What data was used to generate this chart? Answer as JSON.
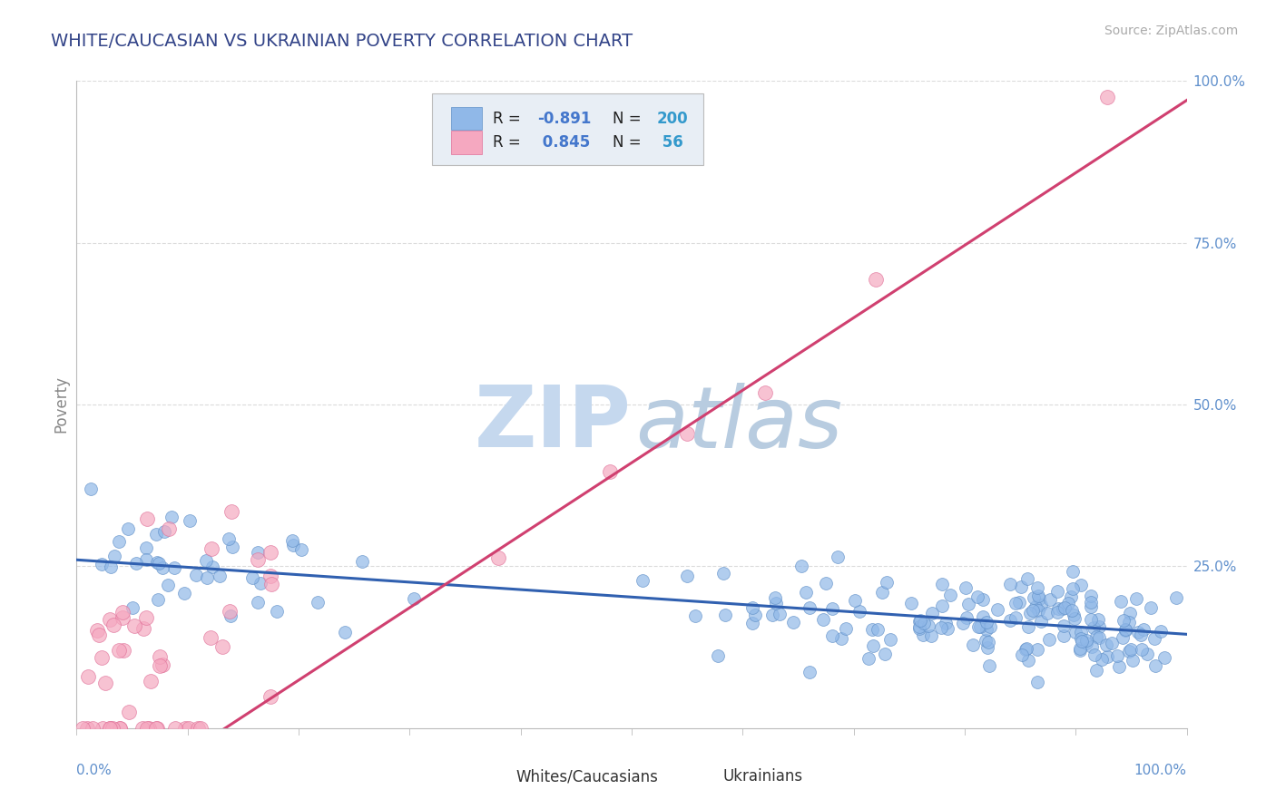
{
  "title": "WHITE/CAUCASIAN VS UKRAINIAN POVERTY CORRELATION CHART",
  "source_text": "Source: ZipAtlas.com",
  "ylabel": "Poverty",
  "blue_scatter_color": "#90b8e8",
  "blue_scatter_edge": "#6090c8",
  "pink_scatter_color": "#f5a8c0",
  "pink_scatter_edge": "#e07098",
  "blue_line_color": "#3060b0",
  "pink_line_color": "#d04070",
  "watermark_zip_color": "#c5d8ee",
  "watermark_atlas_color": "#b8cce0",
  "background_color": "#ffffff",
  "grid_color": "#cccccc",
  "axis_color": "#bbbbbb",
  "tick_label_color": "#6090cc",
  "title_color": "#334488",
  "source_color": "#aaaaaa",
  "blue_r": -0.891,
  "pink_r": 0.845,
  "blue_n": 200,
  "pink_n": 56,
  "blue_intercept": 0.26,
  "blue_slope": -0.115,
  "pink_intercept": -0.15,
  "pink_slope": 1.12,
  "legend_r_color": "#4477cc",
  "legend_n_color": "#3399cc",
  "legend_box_color": "#e8eef5"
}
